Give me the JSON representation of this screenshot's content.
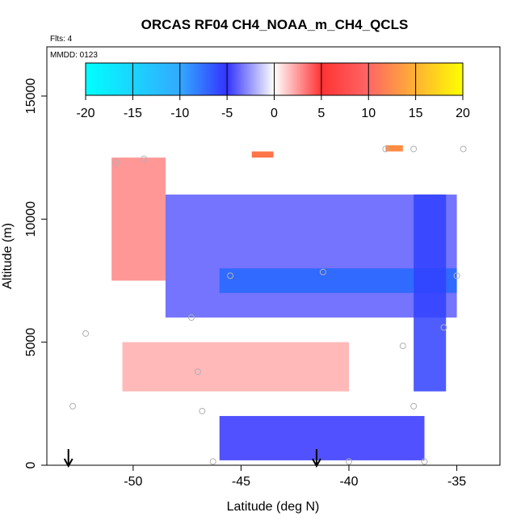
{
  "chart_data": {
    "type": "heatmap",
    "title": "ORCAS RF04 CH4_NOAA_m_CH4_QCLS",
    "annotations": [
      "Flts: 4",
      "MMDD: 0123"
    ],
    "xlabel": "Latitude (deg N)",
    "ylabel": "Altitude (m)",
    "xlim": [
      -54.0,
      -33.0
    ],
    "ylim": [
      0,
      17000
    ],
    "x_ticks": [
      -50,
      -45,
      -40,
      -35
    ],
    "x_tick_labels": [
      "-50",
      "-45",
      "-40",
      "-35"
    ],
    "y_ticks": [
      0,
      5000,
      10000,
      15000
    ],
    "y_tick_labels": [
      "0",
      "5000",
      "10000",
      "15000"
    ],
    "colorbar": {
      "min": -20,
      "max": 20,
      "ticks": [
        -20,
        -15,
        -10,
        -5,
        0,
        5,
        10,
        15,
        20
      ],
      "tick_labels": [
        "-20",
        "-15",
        "-10",
        "-5",
        "0",
        "5",
        "10",
        "15",
        "20"
      ],
      "colors": [
        "#00ffff",
        "#3333ff",
        "#ffffff",
        "#ff3333",
        "#ffff00"
      ]
    },
    "regions": [
      {
        "name": "upper-left-positive",
        "x": [
          -51.0,
          -48.5
        ],
        "y": [
          7500,
          12500
        ],
        "value": 3
      },
      {
        "name": "upper-tongue",
        "x": [
          -48.5,
          -35.0
        ],
        "y": [
          6000,
          11000
        ],
        "value": -4
      },
      {
        "name": "core-7500m-band",
        "x": [
          -46.0,
          -35.0
        ],
        "y": [
          7000,
          8000
        ],
        "value": -9
      },
      {
        "name": "right-column",
        "x": [
          -37.0,
          -35.5
        ],
        "y": [
          3000,
          11000
        ],
        "value": -6
      },
      {
        "name": "mid-positive-band",
        "x": [
          -50.5,
          -40.0
        ],
        "y": [
          3000,
          5000
        ],
        "value": 2
      },
      {
        "name": "low-negative-band",
        "x": [
          -46.0,
          -36.5
        ],
        "y": [
          200,
          2000
        ],
        "value": -5
      },
      {
        "name": "red-patch-1",
        "x": [
          -44.5,
          -43.5
        ],
        "y": [
          12500,
          12750
        ],
        "value": 8
      },
      {
        "name": "red-patch-2",
        "x": [
          -38.3,
          -37.5
        ],
        "y": [
          12750,
          13000
        ],
        "value": 10
      }
    ],
    "arrows": [
      {
        "x": -53.0
      },
      {
        "x": -41.5
      }
    ],
    "sample_points": [
      {
        "x": -50.8,
        "y": 12300
      },
      {
        "x": -49.5,
        "y": 12450
      },
      {
        "x": -38.3,
        "y": 12850
      },
      {
        "x": -37.0,
        "y": 12850
      },
      {
        "x": -34.7,
        "y": 12850
      },
      {
        "x": -45.5,
        "y": 7700
      },
      {
        "x": -41.2,
        "y": 7850
      },
      {
        "x": -35.0,
        "y": 7700
      },
      {
        "x": -47.3,
        "y": 6000
      },
      {
        "x": -35.6,
        "y": 5600
      },
      {
        "x": -52.2,
        "y": 5350
      },
      {
        "x": -37.5,
        "y": 4850
      },
      {
        "x": -47.0,
        "y": 3800
      },
      {
        "x": -52.8,
        "y": 2400
      },
      {
        "x": -46.8,
        "y": 2200
      },
      {
        "x": -37.0,
        "y": 2400
      },
      {
        "x": -46.3,
        "y": 150
      },
      {
        "x": -40.0,
        "y": 150
      },
      {
        "x": -36.5,
        "y": 150
      }
    ]
  }
}
